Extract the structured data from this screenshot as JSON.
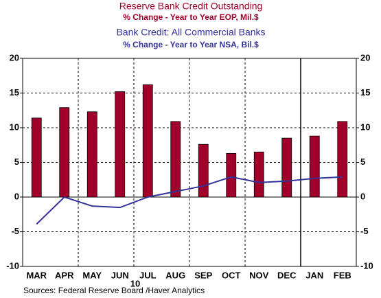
{
  "chart_data": {
    "type": "bar",
    "series": [
      {
        "name": "Reserve Bank Credit Outstanding",
        "subtitle": "% Change - Year to Year    EOP, Mil.$",
        "type": "bar",
        "color": "#a0002a",
        "values": [
          11.4,
          12.9,
          12.3,
          15.2,
          16.2,
          10.9,
          7.6,
          6.3,
          6.5,
          8.5,
          8.8,
          10.9
        ]
      },
      {
        "name": "Bank Credit: All Commercial Banks",
        "subtitle": "% Change - Year to Year    NSA, Bil.$",
        "type": "line",
        "color": "#333399",
        "axis": "y2",
        "values": [
          -3.9,
          0,
          -1.3,
          -1.5,
          0,
          0.8,
          1.6,
          2.9,
          2.1,
          2.3,
          2.7,
          2.9
        ]
      }
    ],
    "categories": [
      "MAR",
      "APR",
      "MAY",
      "JUN",
      "JUL",
      "AUG",
      "SEP",
      "OCT",
      "NOV",
      "DEC",
      "JAN",
      "FEB"
    ],
    "annotation": "10",
    "source": "Sources:  Federal Reserve Board /Haver Analytics",
    "ylim": [
      -10,
      20
    ],
    "yticks": [
      -10,
      -5,
      0,
      5,
      10,
      15,
      20
    ],
    "y2lim": [
      -10,
      20
    ],
    "y2ticks": [
      -10,
      -5,
      0,
      5,
      10,
      15,
      20
    ],
    "grid": true
  }
}
